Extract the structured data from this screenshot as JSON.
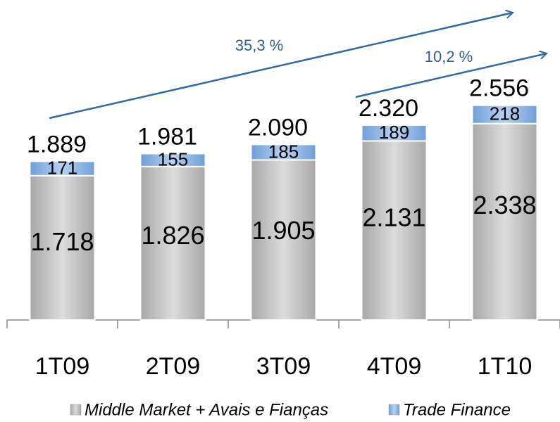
{
  "chart_data": {
    "type": "stacked_bar",
    "categories": [
      "1T09",
      "2T09",
      "3T09",
      "4T09",
      "1T10"
    ],
    "series": [
      {
        "name": "Middle Market + Avais e Fianças",
        "color": "#c4c4c4",
        "values": [
          1718,
          1826,
          1905,
          2131,
          2338
        ],
        "value_labels": [
          "1.718",
          "1.826",
          "1.905",
          "2.131",
          "2.338"
        ]
      },
      {
        "name": "Trade Finance",
        "color": "#8db4e2",
        "values": [
          171,
          155,
          185,
          189,
          218
        ],
        "value_labels": [
          "171",
          "155",
          "185",
          "189",
          "218"
        ]
      }
    ],
    "totals": {
      "values": [
        1889,
        1981,
        2090,
        2320,
        2556
      ],
      "value_labels": [
        "1.889",
        "1.981",
        "2.090",
        "2.320",
        "2.556"
      ]
    },
    "annotations": [
      "35,3 %",
      "10,2 %"
    ],
    "ylim": [
      0,
      3600
    ]
  }
}
